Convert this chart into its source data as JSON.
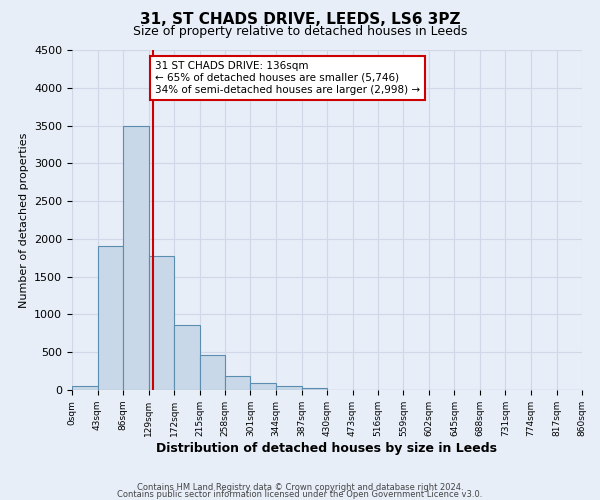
{
  "title": "31, ST CHADS DRIVE, LEEDS, LS6 3PZ",
  "subtitle": "Size of property relative to detached houses in Leeds",
  "xlabel": "Distribution of detached houses by size in Leeds",
  "ylabel": "Number of detached properties",
  "bar_edges": [
    0,
    43,
    86,
    129,
    172,
    215,
    258,
    301,
    344,
    387,
    430,
    473,
    516,
    559,
    602,
    645,
    688,
    731,
    774,
    817,
    860
  ],
  "bar_heights": [
    50,
    1900,
    3500,
    1780,
    860,
    460,
    180,
    95,
    50,
    30,
    0,
    0,
    0,
    0,
    0,
    0,
    0,
    0,
    0,
    0
  ],
  "bar_color": "#c8d8e8",
  "bar_edge_color": "#5b8db0",
  "property_line_x": 136,
  "property_line_color": "#cc0000",
  "annotation_line1": "31 ST CHADS DRIVE: 136sqm",
  "annotation_line2": "← 65% of detached houses are smaller (5,746)",
  "annotation_line3": "34% of semi-detached houses are larger (2,998) →",
  "annotation_box_color": "#ffffff",
  "annotation_box_edge_color": "#cc0000",
  "ylim": [
    0,
    4500
  ],
  "yticks": [
    0,
    500,
    1000,
    1500,
    2000,
    2500,
    3000,
    3500,
    4000,
    4500
  ],
  "xtick_labels": [
    "0sqm",
    "43sqm",
    "86sqm",
    "129sqm",
    "172sqm",
    "215sqm",
    "258sqm",
    "301sqm",
    "344sqm",
    "387sqm",
    "430sqm",
    "473sqm",
    "516sqm",
    "559sqm",
    "602sqm",
    "645sqm",
    "688sqm",
    "731sqm",
    "774sqm",
    "817sqm",
    "860sqm"
  ],
  "grid_color": "#d0d8e8",
  "background_color": "#e8eef8",
  "footer_line1": "Contains HM Land Registry data © Crown copyright and database right 2024.",
  "footer_line2": "Contains public sector information licensed under the Open Government Licence v3.0."
}
